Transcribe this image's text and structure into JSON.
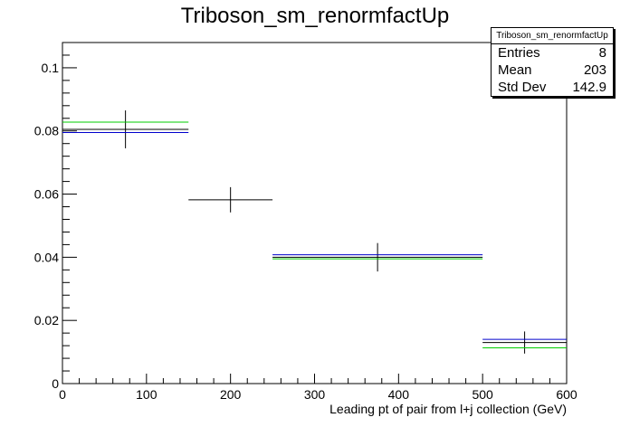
{
  "chart_data": {
    "type": "scatter",
    "title": "Triboson_sm_renormfactUp",
    "xlabel": "Leading pt of pair from l+j collection (GeV)",
    "ylabel": "",
    "xlim": [
      0,
      600
    ],
    "ylim": [
      0,
      0.108
    ],
    "x_ticks": [
      "0",
      "100",
      "200",
      "300",
      "400",
      "500",
      "600"
    ],
    "y_ticks": [
      "0",
      "0.02",
      "0.04",
      "0.06",
      "0.08",
      "0.1"
    ],
    "grid": false,
    "bins": [
      {
        "x_low": 0,
        "x_high": 150,
        "x_center": 75
      },
      {
        "x_low": 150,
        "x_high": 250,
        "x_center": 200
      },
      {
        "x_low": 250,
        "x_high": 500,
        "x_center": 375
      },
      {
        "x_low": 500,
        "x_high": 600,
        "x_center": 550
      }
    ],
    "series": [
      {
        "name": "",
        "color": "#000000",
        "values": [
          0.0805,
          0.0582,
          0.04,
          0.013
        ],
        "errors": [
          0.006,
          0.004,
          0.0045,
          0.0035
        ],
        "errors_down": [
          0.006,
          0.004,
          0.0045,
          0.0035
        ]
      },
      {
        "name": "",
        "color": "#0000cc",
        "values": [
          0.0795,
          null,
          0.0408,
          0.014
        ],
        "errors": [
          0,
          0,
          0,
          0
        ],
        "errors_down": [
          0,
          0,
          0,
          0
        ]
      },
      {
        "name": "",
        "color": "#00cc00",
        "values": [
          0.0828,
          null,
          0.0395,
          0.0113
        ],
        "errors": [
          0,
          0,
          0,
          0
        ],
        "errors_down": [
          0,
          0,
          0,
          0
        ]
      }
    ]
  },
  "stats": {
    "name": "Triboson_sm_renormfactUp",
    "entries_label": "Entries",
    "entries_value": "8",
    "mean_label": "Mean",
    "mean_value": "203",
    "stddev_label": "Std Dev",
    "stddev_value": "142.9"
  }
}
